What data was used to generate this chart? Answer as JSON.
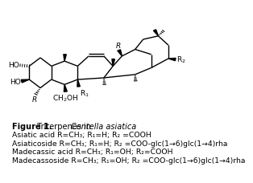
{
  "bg_color": "#ffffff",
  "text_color": "#000000",
  "font_size": 7.0,
  "fig_width": 3.23,
  "fig_height": 2.71,
  "caption_lines": [
    [
      "bold",
      "Figure 1."
    ],
    [
      "normal",
      "  Triterpenes in "
    ],
    [
      "italic",
      "Centella asiatica"
    ],
    [
      "normal",
      "."
    ]
  ],
  "body_lines": [
    "Asiatic acid R=CH₃; R₁=H; R₂ =COOH",
    "Asiaticoside R=CH₃; R₁=H; R₂ =COO-glc(1→6)glc(1→4)rha",
    "Madecassic acid R=CH₃; R₁=OH; R₂=COOH",
    "Madecassoside R=CH₃; R₁=OH; R₂ =COO-glc(1→6)glc(1→4)rha"
  ]
}
